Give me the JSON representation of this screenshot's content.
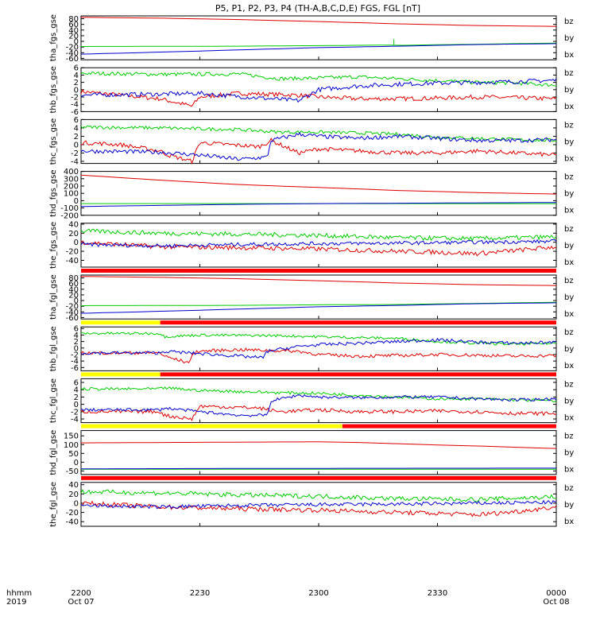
{
  "chart_data": {
    "type": "line",
    "title": "P5, P1, P2, P3, P4 (TH-A,B,C,D,E) FGS, FGL [nT]",
    "time_axis": {
      "label_line1": "hhmm",
      "label_line2": "2019",
      "ticks": [
        "2200",
        "2230",
        "2300",
        "2330",
        "0000"
      ],
      "dates": [
        "Oct 07",
        "Oct 08"
      ],
      "range_minutes": [
        0,
        120
      ]
    },
    "legend": [
      "bz",
      "by",
      "bx"
    ],
    "legend_colors": {
      "bz": "#dd0000",
      "by": "#00cc00",
      "bx": "#0000cc"
    },
    "panels": [
      {
        "ylabel": "tha_fgs_gse",
        "ylim": [
          -65,
          90
        ],
        "yticks": [
          "80",
          "60",
          "40",
          "20",
          "0",
          "-20",
          "-40",
          "-60"
        ],
        "ytick_values": [
          80,
          60,
          40,
          20,
          0,
          -20,
          -40,
          -60
        ],
        "quality_bar": null,
        "series": [
          {
            "name": "bz",
            "t": [
              0,
              20,
              40,
              60,
              80,
              100,
              120
            ],
            "values": [
              85,
              82,
              77,
              70,
              62,
              56,
              53
            ]
          },
          {
            "name": "by",
            "t": [
              0,
              40,
              60,
              78,
              80,
              100,
              120
            ],
            "values": [
              -18,
              -17,
              -15,
              -13,
              -14,
              -10,
              -6
            ],
            "spikes": [
              [
                79,
                8
              ]
            ]
          },
          {
            "name": "bx",
            "t": [
              0,
              20,
              40,
              60,
              80,
              100,
              120
            ],
            "values": [
              -45,
              -38,
              -30,
              -22,
              -17,
              -11,
              -8
            ]
          }
        ]
      },
      {
        "ylabel": "thb_fgs_gse",
        "ylim": [
          -6,
          6
        ],
        "yticks": [
          "6",
          "4",
          "2",
          "0",
          "-2",
          "-4",
          "-6"
        ],
        "ytick_values": [
          6,
          4,
          2,
          0,
          -2,
          -4,
          -6
        ],
        "quality_bar": null,
        "series": [
          {
            "name": "bz",
            "t": [
              0,
              10,
              20,
              28,
              30,
              40,
              55,
              60,
              70,
              80,
              90,
              100,
              110,
              120
            ],
            "values": [
              -0.5,
              -1.5,
              -2.5,
              -4.5,
              -2,
              -1,
              -1.5,
              -2,
              -2.5,
              -2.5,
              -2.3,
              -2,
              -2.2,
              -2.5
            ],
            "noise": 0.6
          },
          {
            "name": "by",
            "t": [
              0,
              20,
              40,
              50,
              60,
              70,
              80,
              90,
              100,
              110,
              120
            ],
            "values": [
              4.5,
              4.2,
              4.3,
              3,
              3.2,
              3.5,
              3,
              2.5,
              2,
              1.8,
              1.2
            ],
            "noise": 0.5
          },
          {
            "name": "bx",
            "t": [
              0,
              20,
              30,
              35,
              55,
              60,
              70,
              80,
              90,
              100,
              110,
              120
            ],
            "values": [
              -1.5,
              -1.2,
              -1,
              -1.5,
              -3,
              0,
              1,
              1.5,
              1.8,
              2,
              2.2,
              2.6
            ],
            "noise": 0.6
          }
        ]
      },
      {
        "ylabel": "thc_fgs_gse",
        "ylim": [
          -4.5,
          6
        ],
        "yticks": [
          "6",
          "4",
          "2",
          "0",
          "-2",
          "-4"
        ],
        "ytick_values": [
          6,
          4,
          2,
          0,
          -2,
          -4
        ],
        "quality_bar": null,
        "series": [
          {
            "name": "bz",
            "t": [
              0,
              10,
              20,
              22,
              28,
              30,
              45,
              48,
              55,
              60,
              70,
              80,
              90,
              100,
              110,
              120
            ],
            "values": [
              0.5,
              0,
              -1.5,
              -2.5,
              -4,
              0.5,
              -0.5,
              1,
              -2,
              -1,
              -1.5,
              -2,
              -2,
              -1.5,
              -2,
              -2.5
            ],
            "noise": 0.5
          },
          {
            "name": "by",
            "t": [
              0,
              20,
              40,
              50,
              60,
              70,
              80,
              90,
              100,
              110,
              120
            ],
            "values": [
              4.2,
              4,
              3.6,
              3,
              3,
              2.8,
              2.5,
              1.8,
              1.5,
              1.2,
              1
            ],
            "noise": 0.4
          },
          {
            "name": "bx",
            "t": [
              0,
              20,
              30,
              40,
              47,
              48,
              55,
              60,
              70,
              80,
              90,
              100,
              110,
              120
            ],
            "values": [
              -1.5,
              -1.8,
              -2.5,
              -3.5,
              -3,
              1,
              2.5,
              2,
              1.5,
              2,
              1.5,
              1,
              1,
              1.2
            ],
            "noise": 0.5
          }
        ]
      },
      {
        "ylabel": "thd_fgs_gse",
        "ylim": [
          -200,
          400
        ],
        "yticks": [
          "400",
          "300",
          "200",
          "100",
          "0",
          "-100",
          "-200"
        ],
        "ytick_values": [
          400,
          300,
          200,
          100,
          0,
          -100,
          -200
        ],
        "quality_bar": null,
        "series": [
          {
            "name": "bz",
            "t": [
              0,
              20,
              40,
              60,
              80,
              100,
              120
            ],
            "values": [
              350,
              280,
              220,
              180,
              140,
              110,
              90
            ]
          },
          {
            "name": "by",
            "t": [
              0,
              120
            ],
            "values": [
              -40,
              -40
            ]
          },
          {
            "name": "bx",
            "t": [
              0,
              20,
              40,
              60,
              80,
              100,
              120
            ],
            "values": [
              -80,
              -65,
              -50,
              -40,
              -35,
              -30,
              -25
            ]
          }
        ]
      },
      {
        "ylabel": "the_fgs_gse",
        "ylim": [
          -55,
          42
        ],
        "yticks": [
          "40",
          "20",
          "0",
          "-20",
          "-40"
        ],
        "ytick_values": [
          40,
          20,
          0,
          -20,
          -40
        ],
        "quality_bar": "red",
        "series": [
          {
            "name": "bz",
            "t": [
              0,
              20,
              40,
              60,
              80,
              90,
              100,
              110,
              120
            ],
            "values": [
              0,
              -10,
              -12,
              -15,
              -20,
              -22,
              -25,
              -18,
              -10
            ],
            "noise": 5
          },
          {
            "name": "by",
            "t": [
              0,
              20,
              40,
              60,
              80,
              100,
              120
            ],
            "values": [
              25,
              20,
              18,
              15,
              10,
              8,
              12
            ],
            "noise": 5
          },
          {
            "name": "bx",
            "t": [
              0,
              20,
              40,
              60,
              80,
              100,
              120
            ],
            "values": [
              -5,
              -8,
              -5,
              -3,
              -2,
              0,
              2
            ],
            "noise": 4
          }
        ]
      },
      {
        "ylabel": "tha_fgl_gse",
        "ylim": [
          -65,
          90
        ],
        "yticks": [
          "80",
          "60",
          "40",
          "20",
          "0",
          "-20",
          "-40",
          "-60"
        ],
        "ytick_values": [
          80,
          60,
          40,
          20,
          0,
          -20,
          -40,
          -60
        ],
        "quality_bar": "yellow-red",
        "series": [
          {
            "name": "bz",
            "t": [
              0,
              20,
              40,
              60,
              80,
              100,
              120
            ],
            "values": [
              85,
              82,
              77,
              70,
              62,
              56,
              53
            ]
          },
          {
            "name": "by",
            "t": [
              0,
              40,
              60,
              80,
              100,
              120
            ],
            "values": [
              -18,
              -17,
              -15,
              -14,
              -10,
              -6
            ]
          },
          {
            "name": "bx",
            "t": [
              0,
              20,
              40,
              60,
              80,
              100,
              120
            ],
            "values": [
              -45,
              -38,
              -30,
              -22,
              -17,
              -11,
              -8
            ]
          }
        ]
      },
      {
        "ylabel": "thb_fgl_gse",
        "ylim": [
          -7,
          6.5
        ],
        "yticks": [
          "6",
          "4",
          "2",
          "0",
          "-2",
          "-4",
          "-6"
        ],
        "ytick_values": [
          6,
          4,
          2,
          0,
          -2,
          -4,
          -6
        ],
        "quality_bar": "yellow-red",
        "series": [
          {
            "name": "bz",
            "t": [
              0,
              20,
              21,
              27,
              29,
              40,
              55,
              60,
              70,
              80,
              90,
              100,
              110,
              120
            ],
            "values": [
              -1.5,
              -1.5,
              -2.5,
              -4.5,
              -1,
              -0.5,
              -1,
              -2,
              -2.5,
              -2.3,
              -2,
              -2.2,
              -2.5,
              -2.3
            ],
            "noise": 0.5
          },
          {
            "name": "by",
            "t": [
              0,
              20,
              21,
              30,
              50,
              60,
              70,
              80,
              90,
              100,
              110,
              120
            ],
            "values": [
              4.5,
              4.5,
              3.5,
              4,
              3.8,
              3.5,
              3.2,
              3,
              2,
              1.5,
              1.2,
              1.5
            ],
            "noise": 0.4
          },
          {
            "name": "bx",
            "t": [
              0,
              20,
              21,
              40,
              46,
              47,
              55,
              60,
              70,
              80,
              90,
              100,
              110,
              120
            ],
            "values": [
              -1.5,
              -1.5,
              -1,
              -2.5,
              -3,
              -1,
              0.5,
              1,
              1.5,
              2,
              2.5,
              1.8,
              1.5,
              1.8
            ],
            "noise": 0.5
          }
        ]
      },
      {
        "ylabel": "thc_fgl_gse",
        "ylim": [
          -5,
          7
        ],
        "yticks": [
          "6",
          "4",
          "2",
          "0",
          "-2",
          "-4"
        ],
        "ytick_values": [
          6,
          4,
          2,
          0,
          -2,
          -4
        ],
        "quality_bar": "yellow-red-long",
        "series": [
          {
            "name": "bz",
            "t": [
              0,
              20,
              21,
              28,
              30,
              45,
              50,
              60,
              70,
              80,
              90,
              100,
              110,
              120
            ],
            "values": [
              -2,
              -2,
              -3,
              -4,
              -0.5,
              -1,
              -2,
              -1.5,
              -2,
              -2,
              -1.8,
              -2,
              -2.5,
              -2.5
            ],
            "noise": 0.5
          },
          {
            "name": "by",
            "t": [
              0,
              20,
              21,
              30,
              40,
              50,
              60,
              70,
              80,
              90,
              100,
              110,
              120
            ],
            "values": [
              4.2,
              4.2,
              4.5,
              3.8,
              3.5,
              3.2,
              3,
              2.5,
              2,
              1.5,
              1.5,
              1.2,
              1
            ],
            "noise": 0.4
          },
          {
            "name": "bx",
            "t": [
              0,
              20,
              21,
              30,
              40,
              47,
              48,
              55,
              60,
              70,
              80,
              90,
              100,
              110,
              120
            ],
            "values": [
              -1.5,
              -1.5,
              -1,
              -2,
              -3,
              -3,
              1,
              2.5,
              2,
              1.8,
              2,
              2,
              1.5,
              1.2,
              1.5
            ],
            "noise": 0.4
          }
        ]
      },
      {
        "ylabel": "thd_fgl_gse",
        "ylim": [
          -70,
          180
        ],
        "yticks": [
          "150",
          "100",
          "50",
          "0",
          "-50"
        ],
        "ytick_values": [
          150,
          100,
          50,
          0,
          -50
        ],
        "quality_bar": "red",
        "series": [
          {
            "name": "bz",
            "t": [
              0,
              20,
              40,
              60,
              70,
              80,
              90,
              100,
              110,
              120
            ],
            "values": [
              110,
              112,
              114,
              116,
              112,
              105,
              98,
              92,
              85,
              78
            ]
          },
          {
            "name": "by",
            "t": [
              0,
              60,
              120
            ],
            "values": [
              -40,
              -40,
              -40
            ]
          },
          {
            "name": "bx",
            "t": [
              0,
              40,
              80,
              120
            ],
            "values": [
              -38,
              -36,
              -35,
              -34
            ]
          }
        ]
      },
      {
        "ylabel": "the_fgl_gse",
        "ylim": [
          -50,
          45
        ],
        "yticks": [
          "40",
          "20",
          "0",
          "-20",
          "-40"
        ],
        "ytick_values": [
          40,
          20,
          0,
          -20,
          -40
        ],
        "quality_bar": null,
        "series": [
          {
            "name": "bz",
            "t": [
              0,
              20,
              40,
              60,
              80,
              90,
              100,
              110,
              120
            ],
            "values": [
              0,
              -8,
              -12,
              -15,
              -20,
              -22,
              -25,
              -18,
              -8
            ],
            "noise": 5
          },
          {
            "name": "by",
            "t": [
              0,
              20,
              40,
              60,
              80,
              100,
              120
            ],
            "values": [
              25,
              22,
              18,
              15,
              10,
              8,
              14
            ],
            "noise": 5
          },
          {
            "name": "bx",
            "t": [
              0,
              20,
              40,
              60,
              80,
              100,
              120
            ],
            "values": [
              -5,
              -8,
              -5,
              -3,
              -2,
              0,
              2
            ],
            "noise": 4
          }
        ]
      }
    ]
  }
}
